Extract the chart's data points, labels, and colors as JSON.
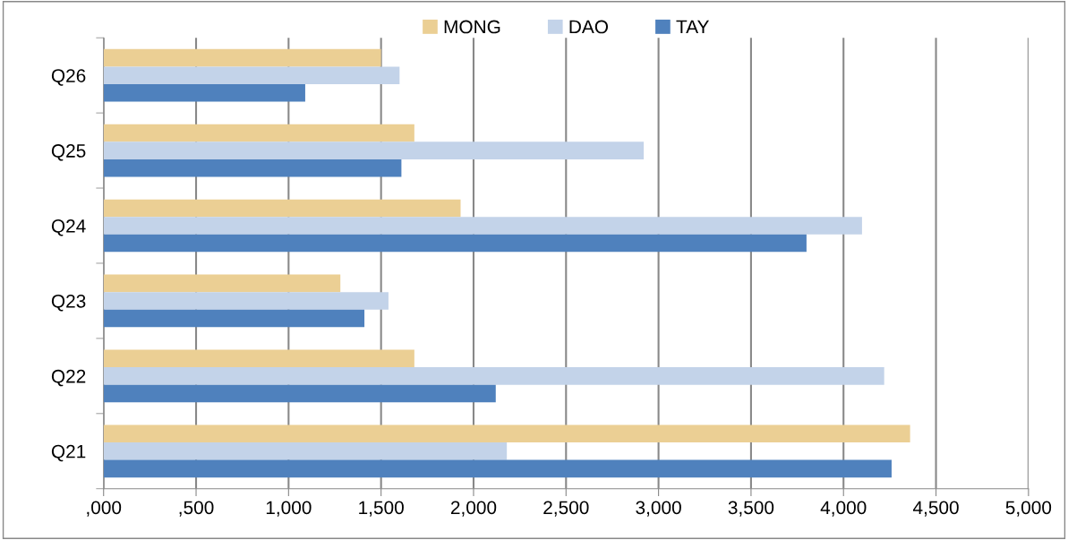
{
  "chart_data": {
    "type": "bar",
    "orientation": "horizontal",
    "categories": [
      "Q26",
      "Q25",
      "Q24",
      "Q23",
      "Q22",
      "Q21"
    ],
    "series": [
      {
        "name": "MONG",
        "color": "#ebcf94",
        "values": [
          1500,
          1680,
          1930,
          1280,
          1680,
          4360
        ]
      },
      {
        "name": "DAO",
        "color": "#c3d3e9",
        "values": [
          1600,
          2920,
          4100,
          1540,
          4220,
          2180
        ]
      },
      {
        "name": "TAY",
        "color": "#4f81bd",
        "values": [
          1090,
          1610,
          3800,
          1410,
          2120,
          4260
        ]
      }
    ],
    "xlim": [
      0,
      5000
    ],
    "xticks": [
      {
        "value": 0,
        "label": ",000"
      },
      {
        "value": 500,
        "label": ",500"
      },
      {
        "value": 1000,
        "label": "1,000"
      },
      {
        "value": 1500,
        "label": "1,500"
      },
      {
        "value": 2000,
        "label": "2,000"
      },
      {
        "value": 2500,
        "label": "2,500"
      },
      {
        "value": 3000,
        "label": "3,000"
      },
      {
        "value": 3500,
        "label": "3,500"
      },
      {
        "value": 4000,
        "label": "4,000"
      },
      {
        "value": 4500,
        "label": "4,500"
      },
      {
        "value": 5000,
        "label": "5,000"
      }
    ],
    "grid": "x",
    "legend": "top"
  }
}
